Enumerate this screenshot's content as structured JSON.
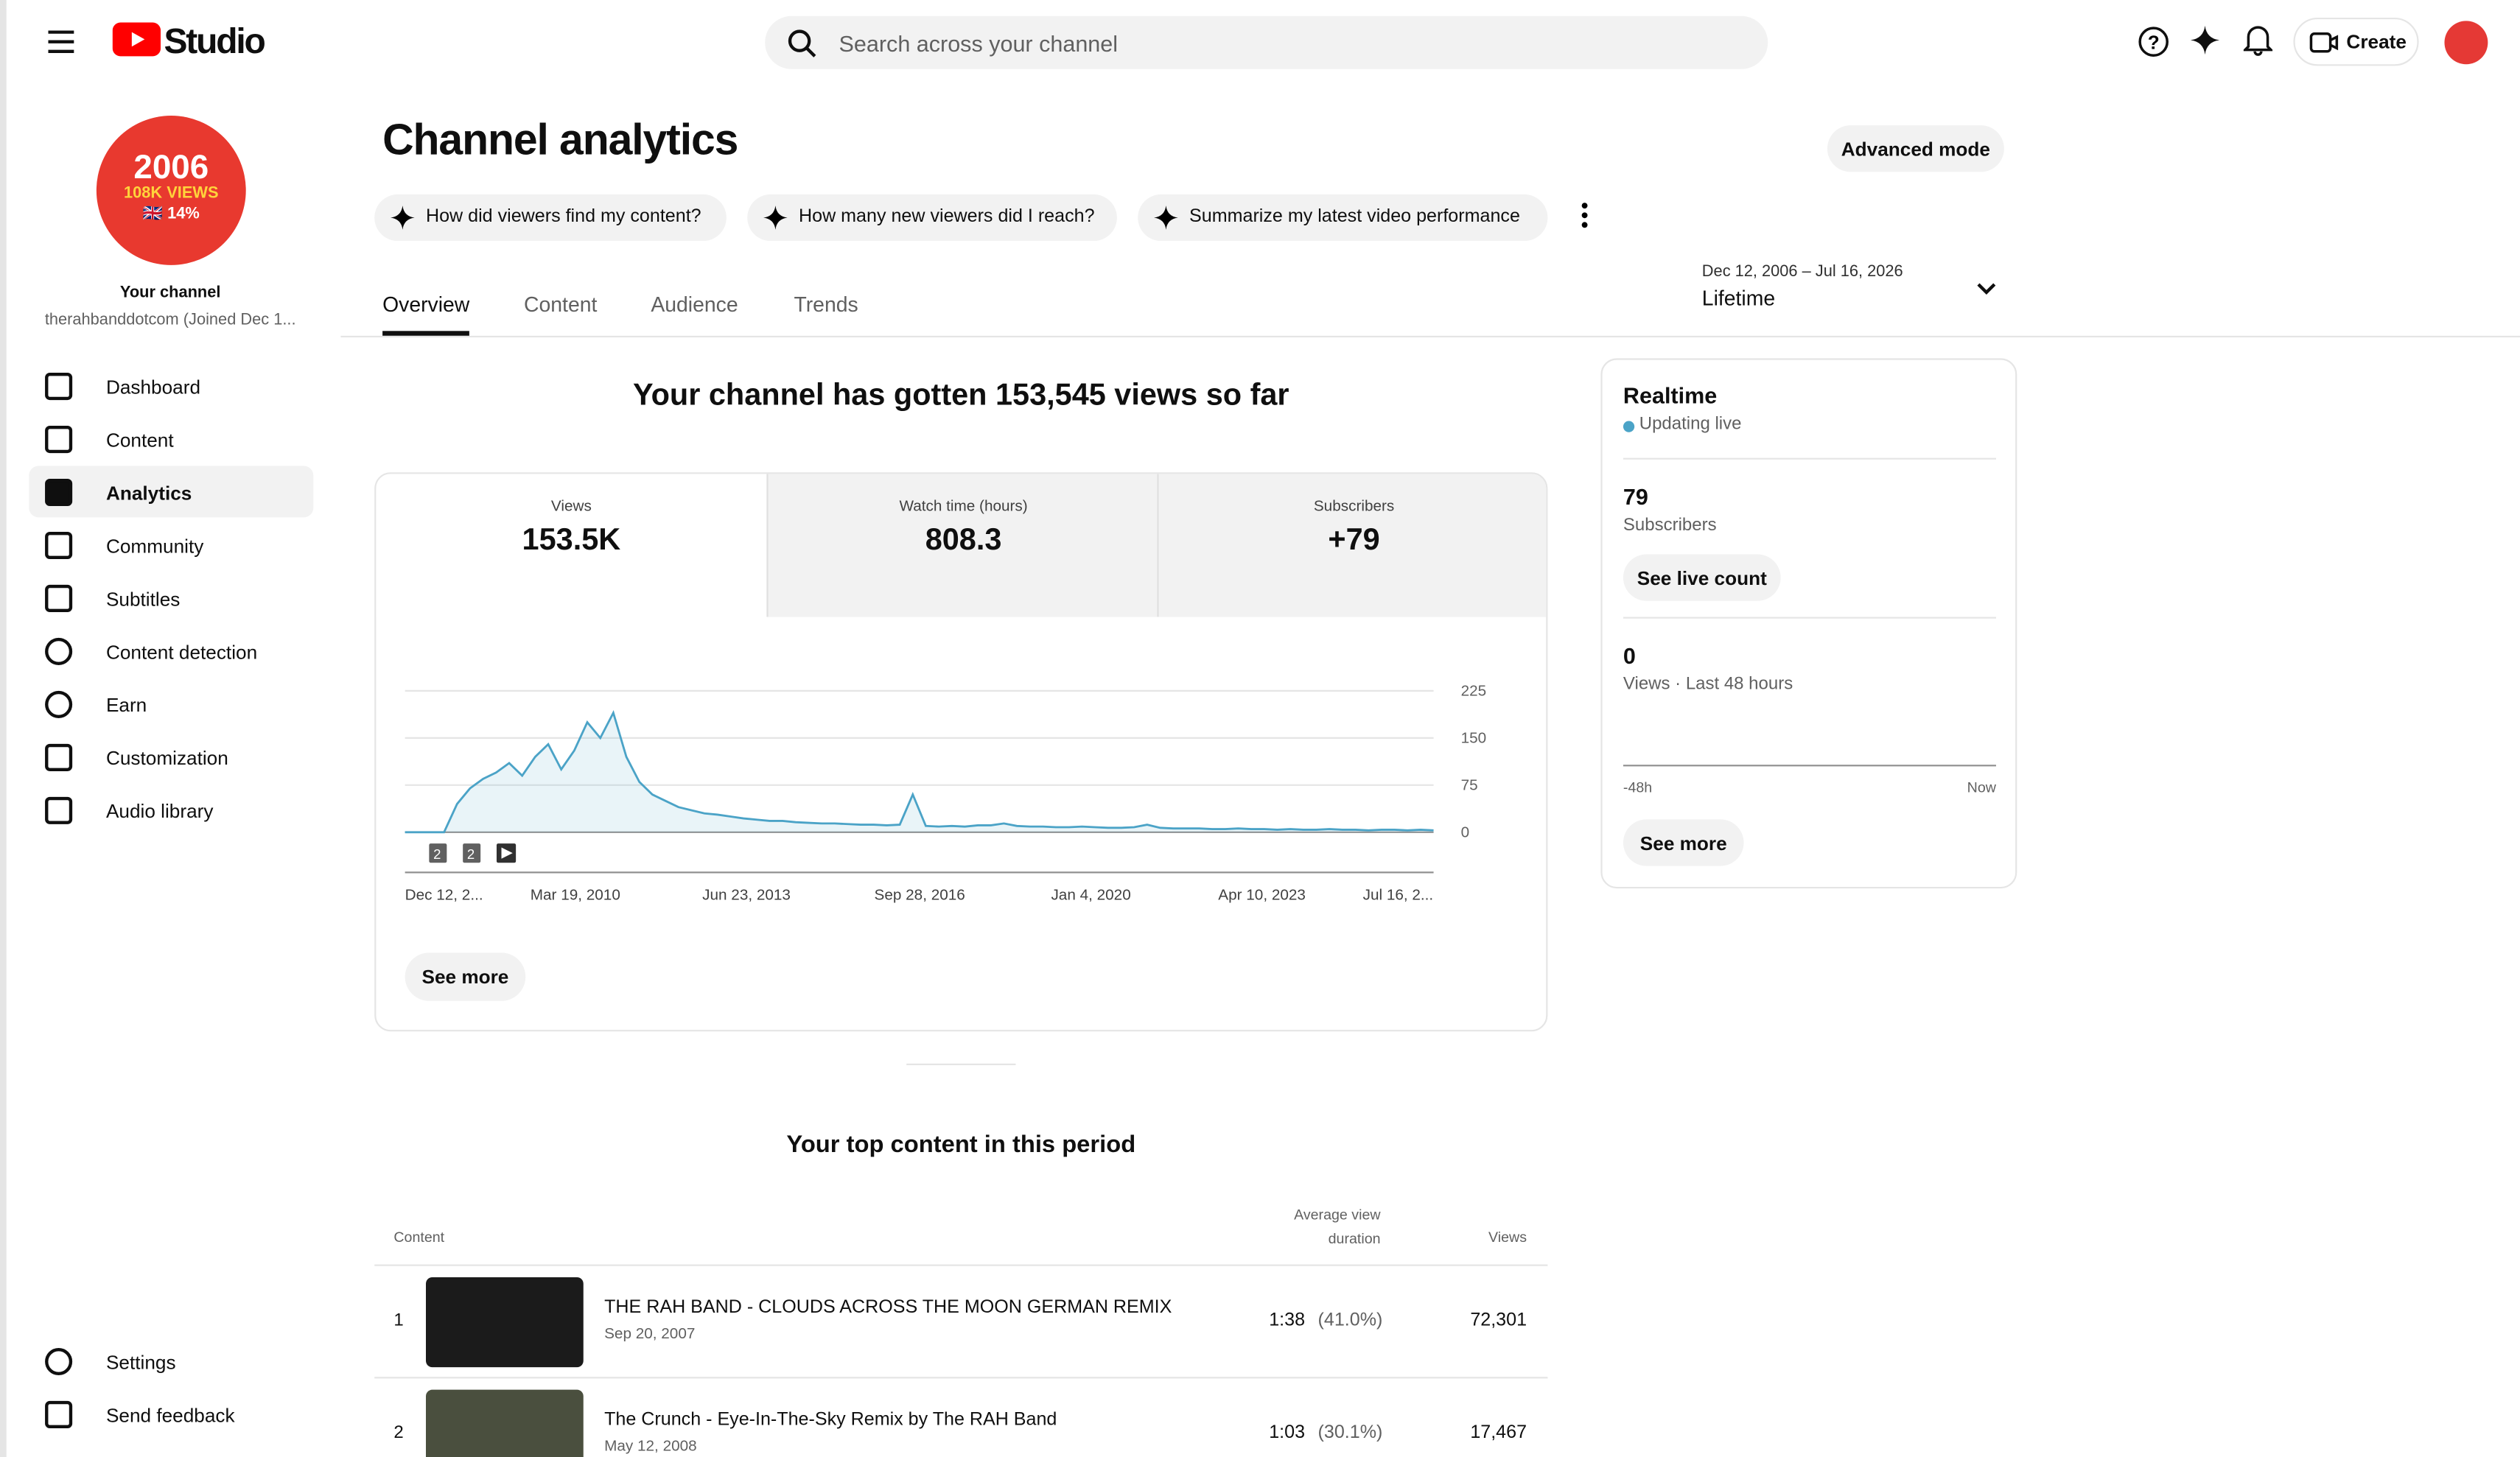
{
  "header": {
    "logo": "Studio",
    "search_placeholder": "Search across your channel",
    "create": "Create"
  },
  "sidebar": {
    "avatar_lines": [
      "2006",
      "108K VIEWS",
      "🇬🇧 14%"
    ],
    "your_channel": "Your channel",
    "channel_name": "therahbanddotcom (Joined Dec 1...",
    "nav": [
      "Dashboard",
      "Content",
      "Analytics",
      "Community",
      "Subtitles",
      "Content detection",
      "Earn",
      "Customization",
      "Audio library"
    ],
    "bottom": [
      "Settings",
      "Send feedback"
    ]
  },
  "page": {
    "title": "Channel analytics",
    "advanced": "Advanced mode",
    "prompts": [
      "How did viewers find my content?",
      "How many new viewers did I reach?",
      "Summarize my latest video performance"
    ],
    "tabs": [
      "Overview",
      "Content",
      "Audience",
      "Trends"
    ],
    "date_range": "Dec 12, 2006 – Jul 16, 2026",
    "period": "Lifetime",
    "headline": "Your channel has gotten 153,545 views so far",
    "see_more": "See more"
  },
  "metrics": [
    {
      "label": "Views",
      "value": "153.5K"
    },
    {
      "label": "Watch time (hours)",
      "value": "808.3"
    },
    {
      "label": "Subscribers",
      "value": "+79"
    }
  ],
  "chart": {
    "type": "line",
    "color": "#4ba3c7",
    "values": [
      0,
      0,
      0,
      0,
      45,
      70,
      85,
      95,
      110,
      90,
      120,
      140,
      100,
      130,
      175,
      150,
      190,
      120,
      80,
      60,
      50,
      40,
      35,
      30,
      28,
      25,
      22,
      20,
      18,
      18,
      16,
      15,
      14,
      14,
      13,
      12,
      12,
      11,
      12,
      60,
      10,
      9,
      10,
      9,
      11,
      11,
      14,
      10,
      9,
      9,
      8,
      8,
      9,
      8,
      7,
      7,
      8,
      12,
      7,
      6,
      6,
      6,
      5,
      5,
      6,
      5,
      5,
      4,
      5,
      4,
      4,
      5,
      4,
      4,
      3,
      4,
      4,
      3,
      4,
      3
    ],
    "ylim": [
      0,
      225
    ],
    "yticks": [
      0,
      75,
      150,
      225
    ],
    "xtick_labels": [
      "Dec 12, 2...",
      "Mar 19, 2010",
      "Jun 23, 2013",
      "Sep 28, 2016",
      "Jan 4, 2020",
      "Apr 10, 2023",
      "Jul 16, 2..."
    ],
    "markers": [
      "2",
      "2"
    ]
  },
  "realtime": {
    "title": "Realtime",
    "status": "Updating live",
    "subscribers": "79",
    "subscribers_label": "Subscribers",
    "live_button": "See live count",
    "views": "0",
    "views_label": "Views · Last 48 hours",
    "axis_start": "-48h",
    "axis_end": "Now",
    "see_more": "See more"
  },
  "top_content": {
    "title": "Your top content in this period",
    "headers": [
      "Content",
      "Average view duration",
      "Views"
    ],
    "rows": [
      {
        "rank": "1",
        "title": "THE RAH BAND - CLOUDS ACROSS THE MOON GERMAN REMIX",
        "date": "Sep 20, 2007",
        "duration": "1:38",
        "percent": "(41.0%)",
        "views": "72,301"
      },
      {
        "rank": "2",
        "title": "The Crunch - Eye-In-The-Sky Remix by The RAH Band",
        "date": "May 12, 2008",
        "duration": "1:03",
        "percent": "(30.1%)",
        "views": "17,467"
      }
    ]
  }
}
